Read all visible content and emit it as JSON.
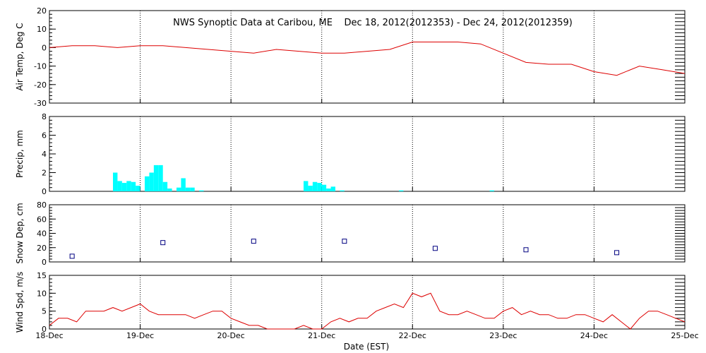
{
  "title": "NWS Synoptic Data at Caribou, ME    Dec 18, 2012(2012353) - Dec 24, 2012(2012359)",
  "xlabel": "Date (EST)",
  "x_tick_labels": [
    "18-Dec",
    "19-Dec",
    "20-Dec",
    "21-Dec",
    "22-Dec",
    "23-Dec",
    "24-Dec",
    "25-Dec"
  ],
  "colors": {
    "temp": "#dd0000",
    "precip": "#00ffff",
    "snow": "#000080",
    "wind": "#dd0000",
    "grid": "#000000"
  },
  "chart_data": [
    {
      "type": "line",
      "panel": "air-temp",
      "ylabel": "Air Temp, Deg C",
      "ylim": [
        -30,
        20
      ],
      "yticks": [
        -30,
        -20,
        -10,
        0,
        10,
        20
      ],
      "xlim": [
        0,
        7
      ],
      "x_unit": "days since 18-Dec 00:00 EST",
      "x": [
        0,
        0.25,
        0.5,
        0.75,
        1.0,
        1.25,
        1.5,
        1.75,
        2.0,
        2.25,
        2.5,
        2.75,
        3.0,
        3.25,
        3.5,
        3.75,
        4.0,
        4.25,
        4.5,
        4.75,
        5.0,
        5.25,
        5.5,
        5.75,
        6.0,
        6.25,
        6.5,
        6.75,
        7.0
      ],
      "y": [
        0,
        1,
        1,
        0,
        1,
        1,
        0,
        -1,
        -2,
        -3,
        -1,
        -2,
        -3,
        -3,
        -2,
        -1,
        3,
        3,
        3,
        2,
        -3,
        -8,
        -9,
        -9,
        -13,
        -15,
        -10,
        -12,
        -14
      ]
    },
    {
      "type": "bar",
      "panel": "precip",
      "ylabel": "Precip, mm",
      "ylim": [
        0,
        8
      ],
      "yticks": [
        0,
        2,
        4,
        6,
        8
      ],
      "xlim": [
        0,
        7
      ],
      "x": [
        0.7,
        0.75,
        0.8,
        0.85,
        0.9,
        0.95,
        1.05,
        1.1,
        1.15,
        1.2,
        1.25,
        1.3,
        1.4,
        1.45,
        1.5,
        1.55,
        1.65,
        2.8,
        2.85,
        2.9,
        2.95,
        3.0,
        3.05,
        3.1,
        3.2,
        3.85,
        4.85
      ],
      "values": [
        2.0,
        1.1,
        0.9,
        1.1,
        1.0,
        0.6,
        1.6,
        2.0,
        2.8,
        2.8,
        1.0,
        0.3,
        0.4,
        1.4,
        0.4,
        0.4,
        0.1,
        1.1,
        0.6,
        1.0,
        0.9,
        0.7,
        0.3,
        0.5,
        0.1,
        0.1,
        0.1
      ]
    },
    {
      "type": "scatter",
      "panel": "snow-depth",
      "ylabel": "Snow Dep, cm",
      "ylim": [
        0,
        80
      ],
      "yticks": [
        0,
        20,
        40,
        60,
        80
      ],
      "xlim": [
        0,
        7
      ],
      "x": [
        0.25,
        1.25,
        2.25,
        3.25,
        4.25,
        5.25,
        6.25
      ],
      "y": [
        8,
        27,
        29,
        29,
        19,
        17,
        13
      ]
    },
    {
      "type": "line",
      "panel": "wind-speed",
      "ylabel": "Wind Spd, m/s",
      "ylim": [
        0,
        15
      ],
      "yticks": [
        0,
        5,
        10,
        15
      ],
      "xlim": [
        0,
        7
      ],
      "x": [
        0,
        0.1,
        0.2,
        0.3,
        0.4,
        0.5,
        0.6,
        0.7,
        0.8,
        0.9,
        1.0,
        1.1,
        1.2,
        1.3,
        1.4,
        1.5,
        1.6,
        1.7,
        1.8,
        1.9,
        2.0,
        2.1,
        2.2,
        2.3,
        2.4,
        2.5,
        2.6,
        2.7,
        2.8,
        2.9,
        3.0,
        3.1,
        3.2,
        3.3,
        3.4,
        3.5,
        3.6,
        3.7,
        3.8,
        3.9,
        4.0,
        4.1,
        4.2,
        4.3,
        4.4,
        4.5,
        4.6,
        4.7,
        4.8,
        4.9,
        5.0,
        5.1,
        5.2,
        5.3,
        5.4,
        5.5,
        5.6,
        5.7,
        5.8,
        5.9,
        6.0,
        6.1,
        6.2,
        6.3,
        6.4,
        6.5,
        6.6,
        6.7,
        6.8,
        6.9,
        7.0
      ],
      "y": [
        1,
        3,
        3,
        2,
        5,
        5,
        5,
        6,
        5,
        6,
        7,
        5,
        4,
        4,
        4,
        4,
        3,
        4,
        5,
        5,
        3,
        2,
        1,
        1,
        0,
        0,
        0,
        0,
        1,
        0,
        0,
        2,
        3,
        2,
        3,
        3,
        5,
        6,
        7,
        6,
        10,
        9,
        10,
        5,
        4,
        4,
        5,
        4,
        3,
        3,
        5,
        6,
        4,
        5,
        4,
        4,
        3,
        3,
        4,
        4,
        3,
        2,
        4,
        2,
        0,
        3,
        5,
        5,
        4,
        3,
        2
      ]
    }
  ]
}
